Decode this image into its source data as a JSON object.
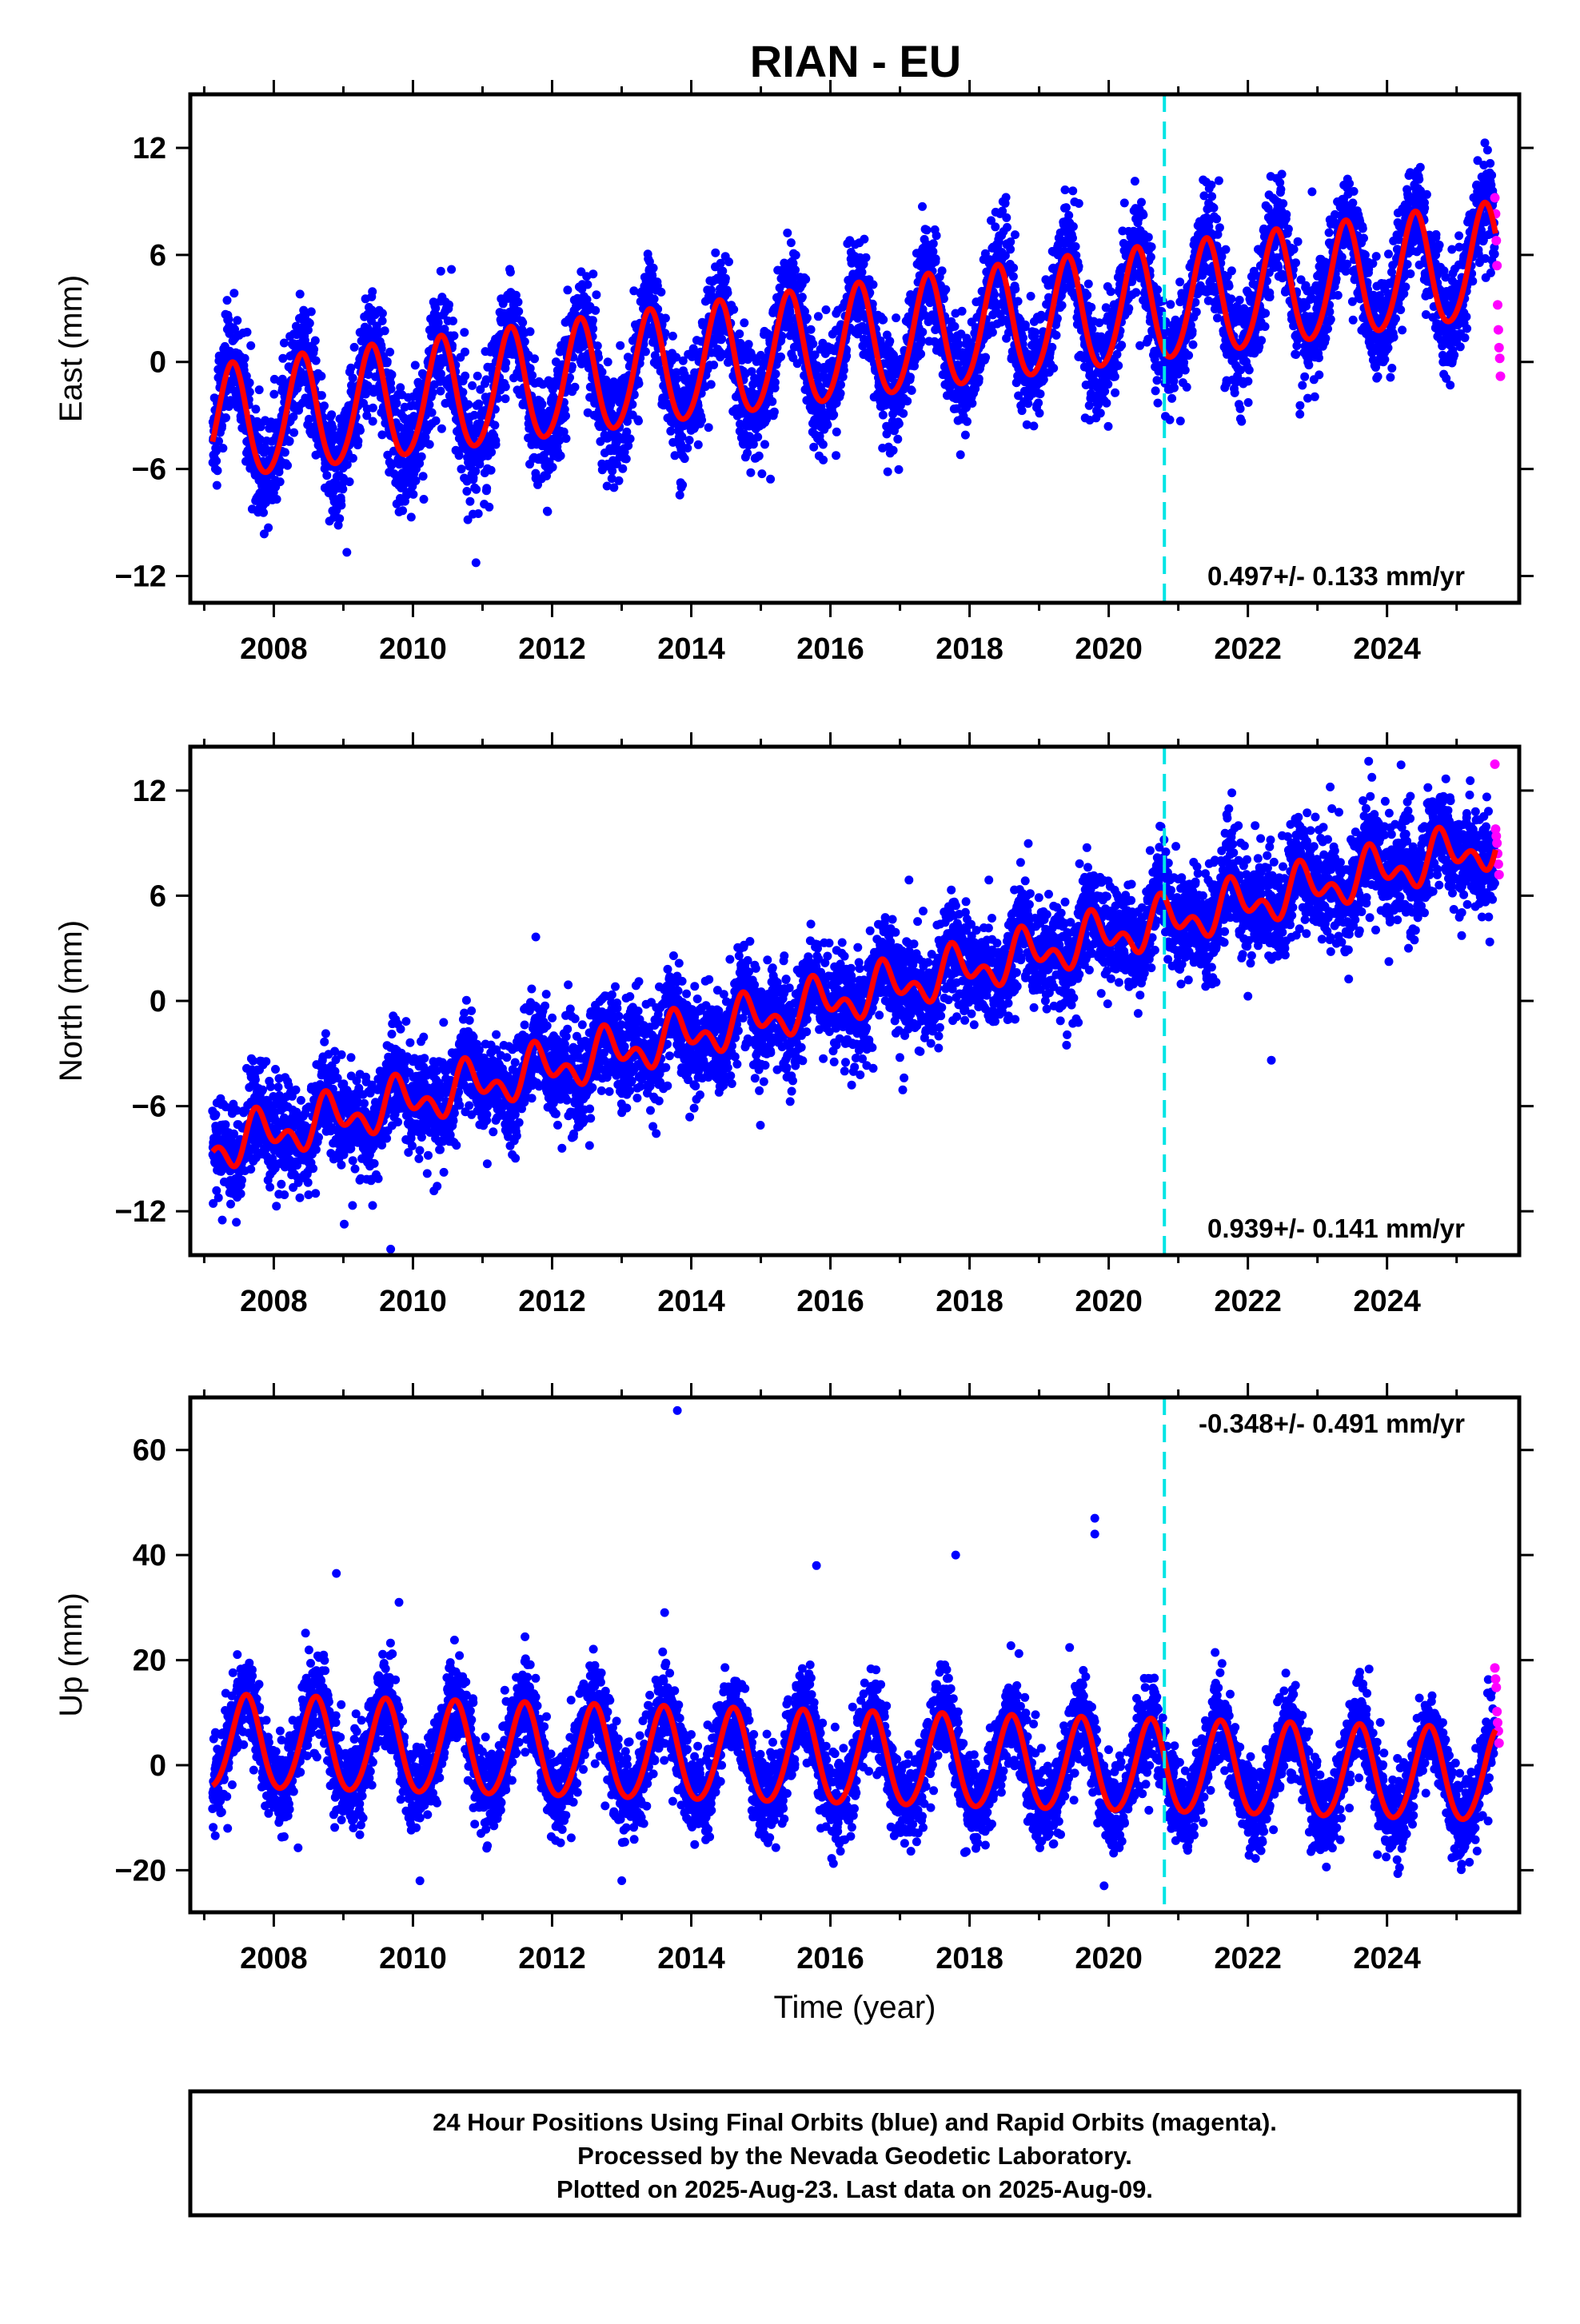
{
  "title": "RIAN - EU",
  "footer": {
    "line1": "24 Hour Positions Using Final Orbits (blue) and Rapid Orbits (magenta).",
    "line2": "Processed by the Nevada Geodetic Laboratory.",
    "line3": "Plotted on 2025-Aug-23. Last data on 2025-Aug-09."
  },
  "colors": {
    "final_orbits": "#0000ff",
    "rapid_orbits": "#ff00ff",
    "model": "#ff0000",
    "equipment_change": "#00e5e5"
  },
  "chart_data": [
    {
      "type": "scatter",
      "name": "east",
      "ylabel": "East (mm)",
      "xlim": [
        2006.8,
        2025.9
      ],
      "ylim": [
        -13.5,
        15
      ],
      "yticks": [
        -12,
        -6,
        0,
        6,
        12
      ],
      "ytick_labels": [
        "−12",
        "−6",
        "0",
        "6",
        "12"
      ],
      "xticks": [
        2008,
        2010,
        2012,
        2014,
        2016,
        2018,
        2020,
        2022,
        2024
      ],
      "xtick_labels": [
        "2008",
        "2010",
        "2012",
        "2014",
        "2016",
        "2018",
        "2020",
        "2022",
        "2024"
      ],
      "rate_label": "0.497+/- 0.133 mm/yr",
      "rate_position": "bottom-right",
      "equipment_change_x": 2020.8,
      "model": {
        "t0": 2007.2,
        "offset": -3.6,
        "trend": 0.497,
        "annual_amp": 3.2,
        "annual_phase": 0.15,
        "semiannual_amp": 0.3,
        "semiannual_phase": 0.3
      },
      "scatter_sd": 1.5,
      "rapid_orbit_points": [
        [
          2025.55,
          9.2
        ],
        [
          2025.56,
          8.3
        ],
        [
          2025.57,
          6.8
        ],
        [
          2025.58,
          5.4
        ],
        [
          2025.59,
          3.2
        ],
        [
          2025.6,
          1.8
        ],
        [
          2025.61,
          0.8
        ],
        [
          2025.62,
          0.2
        ],
        [
          2025.63,
          -0.8
        ]
      ]
    },
    {
      "type": "scatter",
      "name": "north",
      "ylabel": "North (mm)",
      "xlim": [
        2006.8,
        2025.9
      ],
      "ylim": [
        -14.5,
        14.5
      ],
      "yticks": [
        -12,
        -6,
        0,
        6,
        12
      ],
      "ytick_labels": [
        "−12",
        "−6",
        "0",
        "6",
        "12"
      ],
      "xticks": [
        2008,
        2010,
        2012,
        2014,
        2016,
        2018,
        2020,
        2022,
        2024
      ],
      "xtick_labels": [
        "2008",
        "2010",
        "2012",
        "2014",
        "2016",
        "2018",
        "2020",
        "2022",
        "2024"
      ],
      "rate_label": "0.939+/- 0.141 mm/yr",
      "rate_position": "bottom-right",
      "equipment_change_x": 2020.8,
      "model": {
        "t0": 2007.2,
        "offset": -8.3,
        "trend": 0.939,
        "annual_amp": 1.0,
        "annual_phase": 0.55,
        "semiannual_amp": 0.8,
        "semiannual_phase": 0.1
      },
      "scatter_sd": 1.4,
      "rapid_orbit_points": [
        [
          2025.55,
          13.5
        ],
        [
          2025.56,
          9.8
        ],
        [
          2025.57,
          9.4
        ],
        [
          2025.58,
          9.0
        ],
        [
          2025.59,
          8.4
        ],
        [
          2025.6,
          7.8
        ],
        [
          2025.61,
          7.2
        ]
      ]
    },
    {
      "type": "scatter",
      "name": "up",
      "ylabel": "Up (mm)",
      "xlabel": "Time (year)",
      "xlim": [
        2006.8,
        2025.9
      ],
      "ylim": [
        -28,
        70
      ],
      "yticks": [
        -20,
        0,
        20,
        40,
        60
      ],
      "ytick_labels": [
        "−20",
        "0",
        "20",
        "40",
        "60"
      ],
      "xticks": [
        2008,
        2010,
        2012,
        2014,
        2016,
        2018,
        2020,
        2022,
        2024
      ],
      "xtick_labels": [
        "2008",
        "2010",
        "2012",
        "2014",
        "2016",
        "2018",
        "2020",
        "2022",
        "2024"
      ],
      "rate_label": "-0.348+/- 0.491 mm/yr",
      "rate_position": "top-right",
      "equipment_change_x": 2020.8,
      "model": {
        "t0": 2007.2,
        "offset": 4.0,
        "trend": -0.348,
        "annual_amp": 8.8,
        "annual_phase": 0.35,
        "semiannual_amp": 0.8,
        "semiannual_phase": 0.0
      },
      "scatter_sd": 4.0,
      "outliers": [
        [
          2013.8,
          67.5
        ],
        [
          2019.8,
          47
        ],
        [
          2019.8,
          44
        ],
        [
          2017.8,
          40
        ],
        [
          2015.8,
          38
        ],
        [
          2008.9,
          36.5
        ],
        [
          2009.8,
          31
        ],
        [
          2010.1,
          -22
        ]
      ],
      "rapid_orbit_points": [
        [
          2025.55,
          18.5
        ],
        [
          2025.56,
          16.4
        ],
        [
          2025.57,
          14.8
        ],
        [
          2025.58,
          10.2
        ],
        [
          2025.59,
          8.1
        ],
        [
          2025.6,
          6.5
        ],
        [
          2025.61,
          4.2
        ]
      ]
    }
  ]
}
